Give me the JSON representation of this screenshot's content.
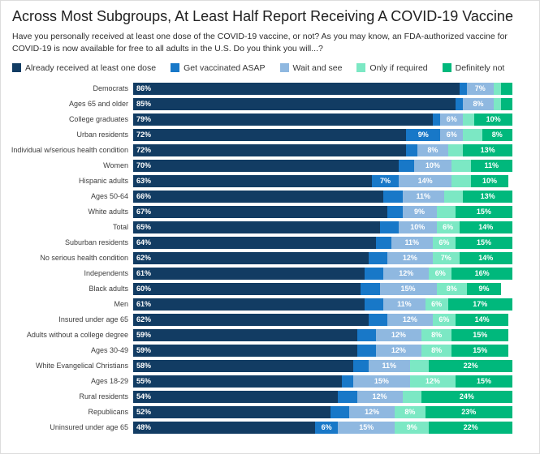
{
  "header": {
    "title": "Across Most Subgroups, At Least Half Report Receiving A COVID-19 Vaccine",
    "subtitle": "Have you personally received at least one dose of the COVID-19 vaccine, or not? As you may know, an FDA-authorized vaccine for COVID-19 is now available for free to all adults in the U.S. Do you think you will...?"
  },
  "colors": {
    "received": "#123C63",
    "asap": "#1878C8",
    "wait_and_see": "#8FB8E0",
    "only_if_required": "#7CE8C4",
    "definitely_not": "#00B87C",
    "background": "#FFFFFF",
    "title_text": "#212121",
    "body_text": "#2D2D2D",
    "bar_value_text": "#FFFFFF"
  },
  "chart_data": {
    "type": "bar",
    "orientation": "horizontal",
    "stacked": true,
    "value_unit": "%",
    "xlim": [
      0,
      100
    ],
    "grid": false,
    "legend_position": "top",
    "label_min_value": 6,
    "categories": [
      "Democrats",
      "Ages 65 and older",
      "College graduates",
      "Urban residents",
      "Individual w/serious health condition",
      "Women",
      "Hispanic adults",
      "Ages 50-64",
      "White adults",
      "Total",
      "Suburban residents",
      "No serious health condition",
      "Independents",
      "Black adults",
      "Men",
      "Insured under age 65",
      "Adults without a college degree",
      "Ages 30-49",
      "White Evangelical Christians",
      "Ages 18-29",
      "Rural residents",
      "Republicans",
      "Uninsured under age 65"
    ],
    "series_colors": [
      "#123C63",
      "#1878C8",
      "#8FB8E0",
      "#7CE8C4",
      "#00B87C"
    ],
    "series": [
      {
        "key": "received",
        "name": "Already received at least one dose",
        "values": [
          86,
          85,
          79,
          72,
          72,
          70,
          63,
          66,
          67,
          65,
          64,
          62,
          61,
          60,
          61,
          62,
          59,
          59,
          58,
          55,
          54,
          52,
          48
        ]
      },
      {
        "key": "asap",
        "name": "Get vaccinated ASAP",
        "values": [
          2,
          2,
          2,
          9,
          3,
          4,
          7,
          5,
          4,
          5,
          4,
          5,
          5,
          5,
          5,
          5,
          5,
          5,
          4,
          3,
          5,
          5,
          6
        ]
      },
      {
        "key": "wait-and-see",
        "name": "Wait and see",
        "values": [
          7,
          8,
          6,
          6,
          8,
          10,
          14,
          11,
          9,
          10,
          11,
          12,
          12,
          15,
          11,
          12,
          12,
          12,
          11,
          15,
          12,
          12,
          15
        ]
      },
      {
        "key": "only-if-required",
        "name": "Only if required",
        "values": [
          2,
          2,
          3,
          5,
          4,
          5,
          5,
          5,
          5,
          6,
          6,
          7,
          6,
          8,
          6,
          6,
          8,
          8,
          5,
          12,
          5,
          8,
          9
        ]
      },
      {
        "key": "definitely-not",
        "name": "Definitely not",
        "values": [
          3,
          3,
          10,
          8,
          13,
          11,
          10,
          13,
          15,
          14,
          15,
          14,
          16,
          9,
          17,
          14,
          15,
          15,
          22,
          15,
          24,
          23,
          22
        ]
      }
    ]
  }
}
